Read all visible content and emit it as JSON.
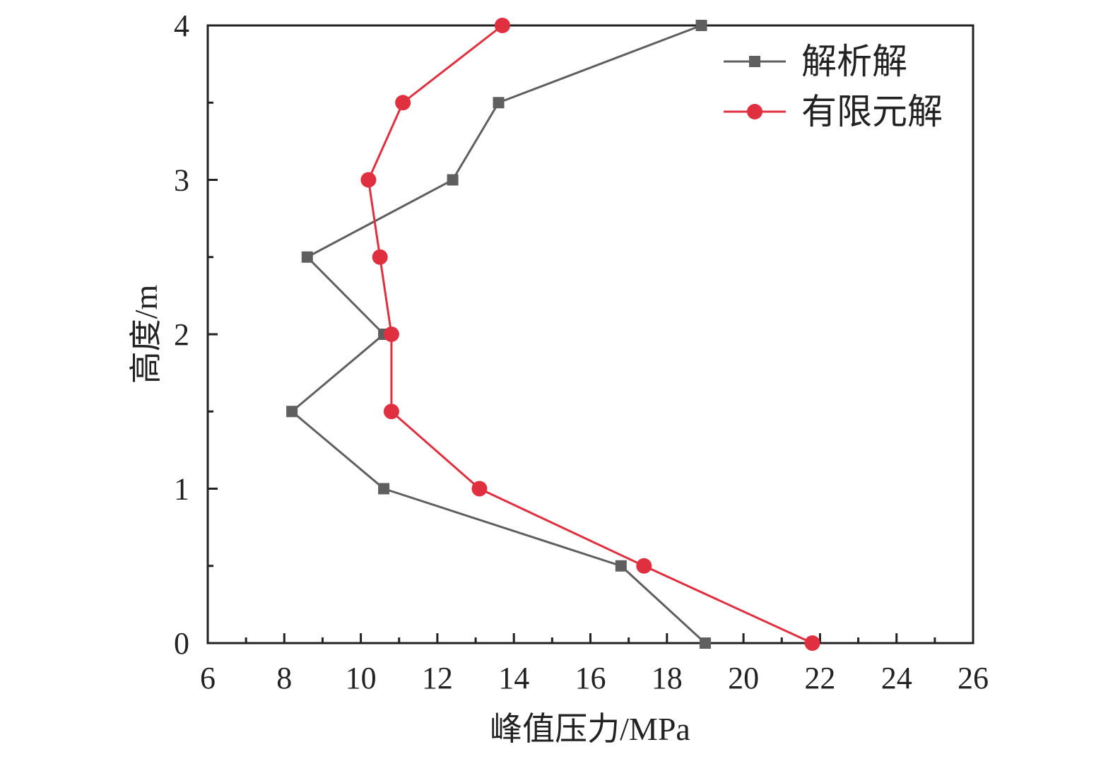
{
  "chart_data": {
    "type": "line",
    "title": "",
    "xlabel": "峰值压力/MPa",
    "ylabel": "高度/m",
    "xlim": [
      6,
      26
    ],
    "ylim": [
      0,
      4
    ],
    "x_ticks": [
      6,
      8,
      10,
      12,
      14,
      16,
      18,
      20,
      22,
      24,
      26
    ],
    "y_ticks": [
      0,
      1,
      2,
      3,
      4
    ],
    "grid": false,
    "legend_position": "top-right",
    "series": [
      {
        "name": "解析解",
        "color": "#5f5f5f",
        "marker": "square",
        "x": [
          19.0,
          16.8,
          10.6,
          8.2,
          10.6,
          8.6,
          12.4,
          13.6,
          18.9
        ],
        "y": [
          0,
          0.5,
          1,
          1.5,
          2,
          2.5,
          3,
          3.5,
          4
        ]
      },
      {
        "name": "有限元解",
        "color": "#e0303f",
        "marker": "circle",
        "x": [
          21.8,
          17.4,
          13.1,
          10.8,
          10.8,
          10.5,
          10.2,
          11.1,
          13.7
        ],
        "y": [
          0,
          0.5,
          1,
          1.5,
          2,
          2.5,
          3,
          3.5,
          4
        ]
      }
    ]
  }
}
